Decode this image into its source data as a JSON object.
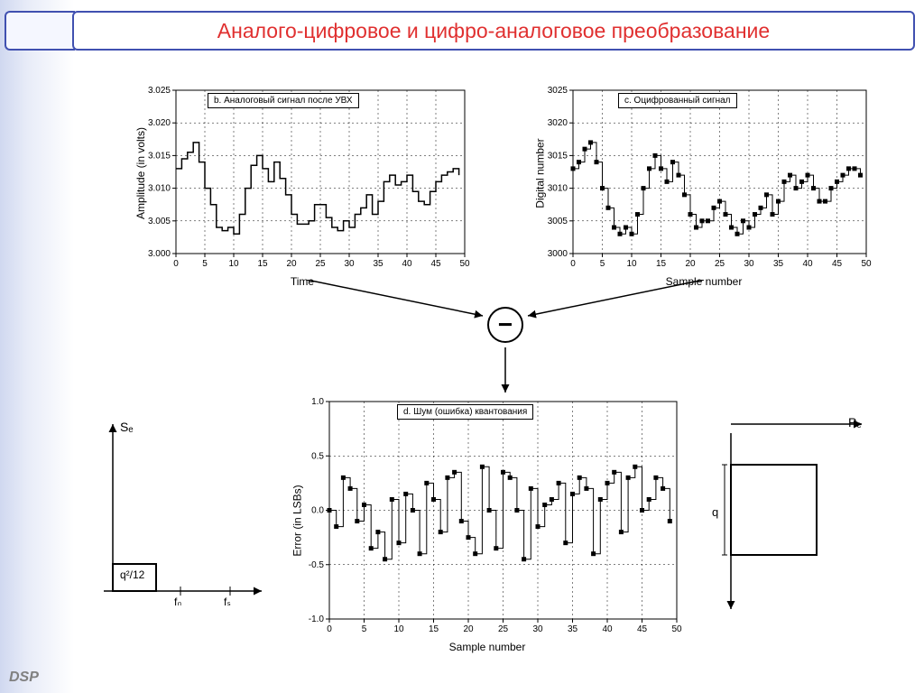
{
  "slide": {
    "title": "Аналого-цифровое и цифро-аналоговое преобразование",
    "footer": "DSP"
  },
  "chart_b": {
    "type": "line-step",
    "legend": "b. Аналоговый сигнал после УВХ",
    "xlabel": "Time",
    "ylabel": "Amplitude (in volts)",
    "xlim": [
      0,
      50
    ],
    "ylim": [
      3.0,
      3.025
    ],
    "xticks": [
      0,
      5,
      10,
      15,
      20,
      25,
      30,
      35,
      40,
      45,
      50
    ],
    "yticks": [
      3.0,
      3.005,
      3.01,
      3.015,
      3.02,
      3.025
    ],
    "ytick_labels": [
      "3.000",
      "3.005",
      "3.010",
      "3.015",
      "3.020",
      "3.025"
    ],
    "values": [
      3.013,
      3.0145,
      3.0155,
      3.017,
      3.014,
      3.01,
      3.0075,
      3.004,
      3.0035,
      3.004,
      3.003,
      3.006,
      3.01,
      3.0135,
      3.015,
      3.013,
      3.011,
      3.014,
      3.0115,
      3.009,
      3.006,
      3.0045,
      3.0045,
      3.005,
      3.0075,
      3.0075,
      3.0055,
      3.004,
      3.0035,
      3.005,
      3.004,
      3.006,
      3.007,
      3.009,
      3.006,
      3.008,
      3.011,
      3.012,
      3.0105,
      3.011,
      3.012,
      3.0095,
      3.008,
      3.0075,
      3.0095,
      3.011,
      3.012,
      3.0125,
      3.013,
      3.012
    ],
    "line_color": "#000000",
    "line_width": 1.5,
    "grid_color": "#000000",
    "background_color": "#ffffff",
    "label_fontsize": 12
  },
  "chart_c": {
    "type": "step-scatter",
    "legend": "c. Оцифрованный сигнал",
    "xlabel": "Sample number",
    "ylabel": "Digital number",
    "xlim": [
      0,
      50
    ],
    "ylim": [
      3000,
      3025
    ],
    "xticks": [
      0,
      5,
      10,
      15,
      20,
      25,
      30,
      35,
      40,
      45,
      50
    ],
    "yticks": [
      3000,
      3005,
      3010,
      3015,
      3020,
      3025
    ],
    "values": [
      3013,
      3014,
      3016,
      3017,
      3014,
      3010,
      3007,
      3004,
      3003,
      3004,
      3003,
      3006,
      3010,
      3013,
      3015,
      3013,
      3011,
      3014,
      3012,
      3009,
      3006,
      3004,
      3005,
      3005,
      3007,
      3008,
      3006,
      3004,
      3003,
      3005,
      3004,
      3006,
      3007,
      3009,
      3006,
      3008,
      3011,
      3012,
      3010,
      3011,
      3012,
      3010,
      3008,
      3008,
      3010,
      3011,
      3012,
      3013,
      3013,
      3012
    ],
    "marker_color": "#000000",
    "marker_size": 4,
    "line_color": "#000000",
    "line_width": 1,
    "grid_color": "#000000",
    "background_color": "#ffffff",
    "label_fontsize": 12
  },
  "chart_d": {
    "type": "step-scatter",
    "legend": "d. Шум (ошибка) квантования",
    "xlabel": "Sample number",
    "ylabel": "Error (in LSBs)",
    "xlim": [
      0,
      50
    ],
    "ylim": [
      -1.0,
      1.0
    ],
    "xticks": [
      0,
      5,
      10,
      15,
      20,
      25,
      30,
      35,
      40,
      45,
      50
    ],
    "yticks": [
      -1.0,
      -0.5,
      0.0,
      0.5,
      1.0
    ],
    "ytick_labels": [
      "-1.0",
      "-0.5",
      "0.0",
      "0.5",
      "1.0"
    ],
    "values": [
      0.0,
      -0.15,
      0.3,
      0.2,
      -0.1,
      0.05,
      -0.35,
      -0.2,
      -0.45,
      0.1,
      -0.3,
      0.15,
      0.0,
      -0.4,
      0.25,
      0.1,
      -0.2,
      0.3,
      0.35,
      -0.1,
      -0.25,
      -0.4,
      0.4,
      0.0,
      -0.35,
      0.35,
      0.3,
      0.0,
      -0.45,
      0.2,
      -0.15,
      0.05,
      0.1,
      0.25,
      -0.3,
      0.15,
      0.3,
      0.2,
      -0.4,
      0.1,
      0.25,
      0.35,
      -0.2,
      0.3,
      0.4,
      0.0,
      0.1,
      0.3,
      0.2,
      -0.1
    ],
    "marker_color": "#000000",
    "marker_size": 4,
    "line_color": "#000000",
    "line_width": 1,
    "grid_color": "#000000",
    "background_color": "#ffffff",
    "label_fontsize": 12
  },
  "chart_se": {
    "type": "diagram",
    "ylabel": "Sₑ",
    "xlabel_left": "fₙ",
    "xlabel_right": "fₛ",
    "box_label": "q²/12",
    "line_color": "#000000"
  },
  "chart_pe": {
    "type": "diagram",
    "ylabel": "Pₑ",
    "q_label": "q",
    "line_color": "#000000"
  },
  "subtract": {
    "symbol": "−"
  }
}
